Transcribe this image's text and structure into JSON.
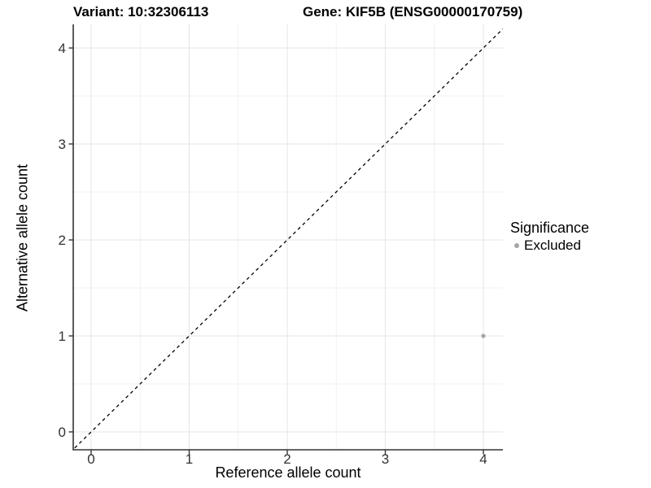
{
  "chart_data": {
    "type": "scatter",
    "title_left": "Variant: 10:32306113",
    "title_right": "Gene: KIF5B (ENSG00000170759)",
    "xlabel": "Reference allele count",
    "ylabel": "Alternative allele count",
    "xticks": [
      "0",
      "1",
      "2",
      "3",
      "4"
    ],
    "yticks": [
      "0",
      "1",
      "2",
      "3",
      "4"
    ],
    "xtick_values": [
      0,
      1,
      2,
      3,
      4
    ],
    "ytick_values": [
      0,
      1,
      2,
      3,
      4
    ],
    "xlim": [
      -0.19,
      4.2
    ],
    "ylim": [
      -0.19,
      4.25
    ],
    "grid": {
      "major": true,
      "minor": true
    },
    "reference_line": {
      "style": "dashed",
      "slope": 1,
      "intercept": 0,
      "color": "#000000"
    },
    "series": [
      {
        "name": "Excluded",
        "color": "#a6a6a6",
        "points": [
          [
            4,
            1
          ]
        ]
      }
    ],
    "legend": {
      "title": "Significance",
      "position": "right",
      "items": [
        {
          "label": "Excluded",
          "color": "#a6a6a6"
        }
      ]
    },
    "colors": {
      "axis_line": "#333333",
      "tick_text": "#333333",
      "grid_major": "#e4e4e4",
      "grid_minor": "#f1f1f1",
      "background": "#ffffff"
    }
  }
}
